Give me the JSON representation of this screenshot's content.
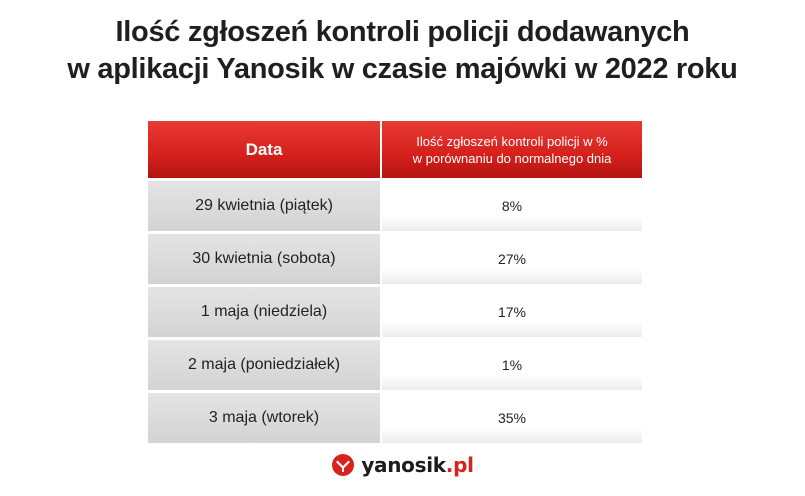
{
  "title": {
    "line1": "Ilość zgłoszeń kontroli policji dodawanych",
    "line2": "w aplikacji Yanosik w czasie majówki w 2022 roku"
  },
  "chart_data": {
    "type": "table",
    "columns": {
      "date": "Data",
      "value_line1": "Ilość zgłoszeń kontroli policji w %",
      "value_line2": "w porównaniu do normalnego dnia"
    },
    "rows": [
      {
        "date": "29 kwietnia (piątek)",
        "value": "8%"
      },
      {
        "date": "30 kwietnia (sobota)",
        "value": "27%"
      },
      {
        "date": "1 maja (niedziela)",
        "value": "17%"
      },
      {
        "date": "2 maja (poniedziałek)",
        "value": "1%"
      },
      {
        "date": "3 maja (wtorek)",
        "value": "35%"
      }
    ]
  },
  "logo": {
    "name": "yanosik",
    "domain": ".pl",
    "icon": "yanosik-logo-icon"
  },
  "colors": {
    "header_red": "#d7221d",
    "row_gray": "#d9d9d9",
    "brand_red": "#d7221d"
  }
}
